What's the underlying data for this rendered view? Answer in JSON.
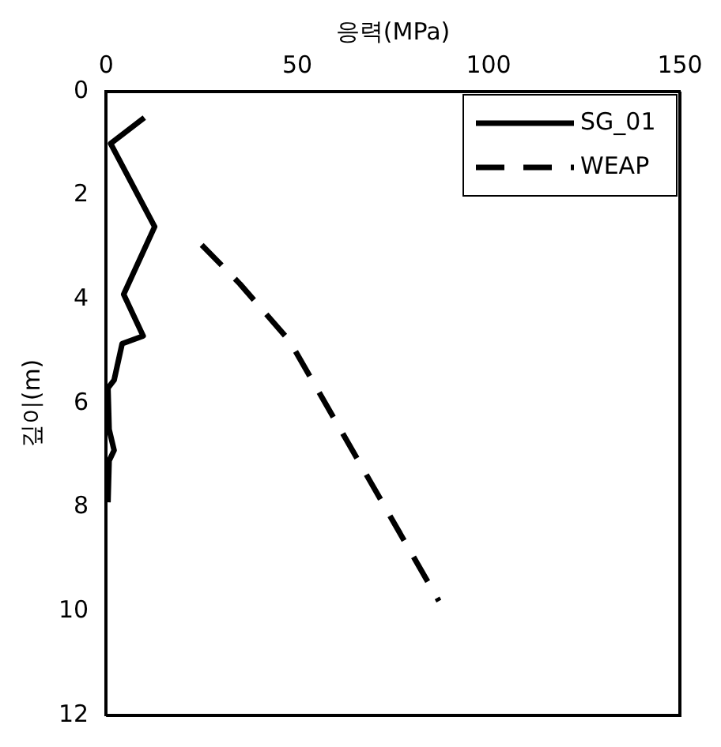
{
  "chart_data": {
    "type": "line",
    "xlabel": "응력(MPa)",
    "ylabel": "깊이(m)",
    "xlim": [
      0,
      150
    ],
    "xticks": [
      0,
      50,
      100,
      150
    ],
    "ylim": [
      12,
      0
    ],
    "yticks": [
      0,
      2,
      4,
      6,
      8,
      10,
      12
    ],
    "legend": "top right",
    "grid": false,
    "marker": "none",
    "series": [
      {
        "name": "SG_01",
        "color": "#000000",
        "line_style": "solid",
        "x": [
          10,
          1.2,
          12.7,
          4.6,
          9.7,
          4.2,
          2.1,
          0.5,
          0.8,
          2.1,
          0.8,
          0.5
        ],
        "values": [
          0.5,
          1.0,
          2.6,
          3.9,
          4.7,
          4.85,
          5.55,
          5.7,
          6.5,
          6.9,
          7.1,
          7.9
        ]
      },
      {
        "name": "WEAP",
        "color": "#000000",
        "line_style": "dashed",
        "x": [
          25,
          35,
          48,
          87
        ],
        "values": [
          2.95,
          3.7,
          4.8,
          9.8
        ]
      }
    ]
  }
}
